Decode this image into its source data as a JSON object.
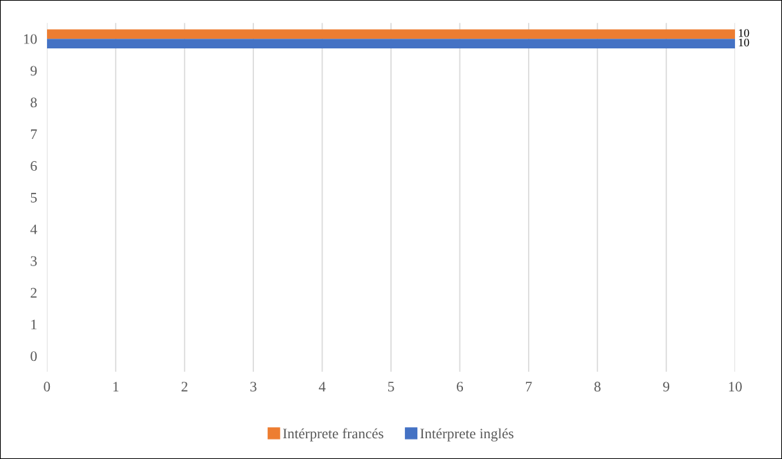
{
  "chart_data": {
    "type": "bar",
    "orientation": "horizontal",
    "categories": [
      "10",
      "9",
      "8",
      "7",
      "6",
      "5",
      "4",
      "3",
      "2",
      "1",
      "0"
    ],
    "series": [
      {
        "name": "Intérprete francés",
        "color": "#ed7d31",
        "values": [
          10,
          null,
          null,
          null,
          null,
          null,
          null,
          null,
          null,
          null,
          null
        ]
      },
      {
        "name": "Intérprete inglés",
        "color": "#4472c4",
        "values": [
          10,
          null,
          null,
          null,
          null,
          null,
          null,
          null,
          null,
          null,
          null
        ]
      }
    ],
    "xlim": [
      0,
      10
    ],
    "xticks": [
      0,
      1,
      2,
      3,
      4,
      5,
      6,
      7,
      8,
      9,
      10
    ],
    "grid": "x",
    "legend": "bottom",
    "data_labels": true
  }
}
